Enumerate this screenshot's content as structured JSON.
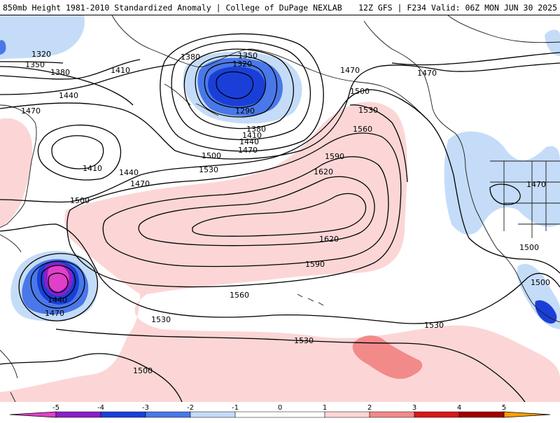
{
  "header": {
    "title": "850mb Height 1981-2010 Standardized Anomaly | College of DuPage NEXLAB",
    "run_info": "12Z GFS | F234 Valid: 06Z MON JUN 30 2025"
  },
  "colors": {
    "neg5": "#e040c8",
    "neg4": "#8a1fc8",
    "neg3": "#1a3fd8",
    "neg2": "#4a78e8",
    "neg1": "#c4dcf8",
    "zero": "#ffffff",
    "pos1": "#fcd6d6",
    "pos2": "#f28a8a",
    "pos3": "#d81818",
    "pos4": "#a00000",
    "pos5": "#ffa000",
    "contour": "#000000",
    "land": "#1a1a1a"
  },
  "colorbar": {
    "ticks": [
      "-5",
      "-4",
      "-3",
      "-2",
      "-1",
      "0",
      "1",
      "2",
      "3",
      "4",
      "5"
    ]
  },
  "contours": [
    {
      "label": "1320"
    },
    {
      "label": "1350"
    },
    {
      "label": "1380"
    },
    {
      "label": "1410"
    },
    {
      "label": "1440"
    },
    {
      "label": "1470"
    },
    {
      "label": "1500"
    },
    {
      "label": "1530"
    },
    {
      "label": "1560"
    },
    {
      "label": "1590"
    },
    {
      "label": "1620"
    },
    {
      "label": "1290"
    }
  ]
}
